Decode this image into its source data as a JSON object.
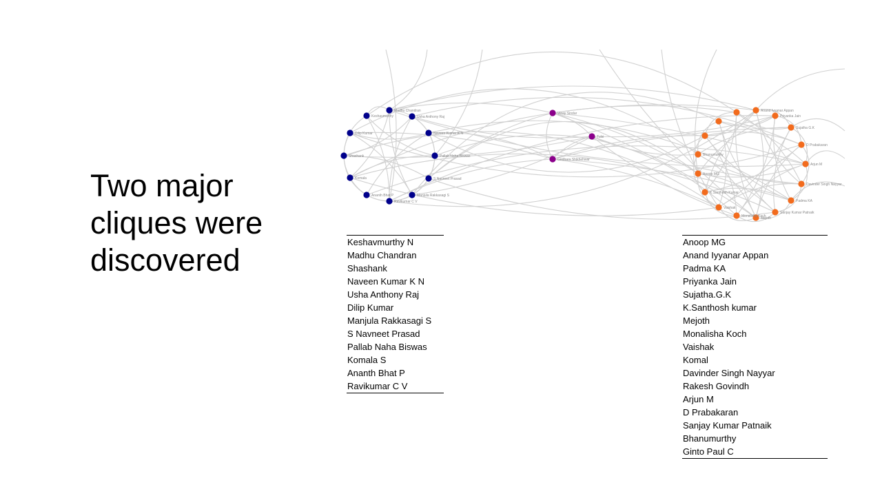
{
  "slide": {
    "title_lines": [
      "Two major",
      "cliques were",
      "discovered"
    ]
  },
  "colors": {
    "clique_a": "#00008b",
    "clique_b": "#f26b1d",
    "bridge": "#8b008b",
    "edge": "#d0d0d0"
  },
  "clique_a_members": [
    "Keshavmurthy N",
    "Madhu Chandran",
    "Shashank",
    "Naveen Kumar K N",
    "Usha Anthony Raj",
    "Dilip Kumar",
    "Manjula Rakkasagi S",
    "S Navneet Prasad",
    "Pallab Naha Biswas",
    "Komala S",
    "Ananth Bhat P",
    "Ravikumar C V"
  ],
  "clique_b_members": [
    "Anoop MG",
    "Anand Iyyanar Appan",
    "Padma KA",
    "Priyanka Jain",
    "Sujatha.G.K",
    "K.Santhosh kumar",
    "Mejoth",
    "Monalisha Koch",
    "Vaishak",
    "Komal",
    "Davinder Singh Nayyar",
    "Rakesh Govindh",
    "Arjun M",
    "D Prabakaran",
    "Sanjay Kumar Patnaik",
    "Bhanumurthy",
    "Ginto Paul C"
  ],
  "graph_labels": {
    "a": [
      "Madhu Chandran",
      "Usha Anthony Raj",
      "Naveen Kumar K N",
      "Pallab Naha Biswas",
      "S Navneet Prasad",
      "Manjula Rakkasagi S",
      "Ravikumar C V",
      "Ananth Bhat P",
      "Komala",
      "Shashank",
      "Dilip Kumar",
      "Keshavmurthy"
    ],
    "bridge": [
      "Vinay Sindar",
      "Tulsi",
      "Girdhara Shikhehwar"
    ],
    "b": [
      "Anand Iyyanar Appan",
      "Priyanka Jain",
      "Sujatha G.K",
      "D Prabakaran",
      "Arjun M",
      "Davinder Singh Nayyar",
      "Padma KA",
      "Sanjay Kumar Patnaik",
      "Mejoth",
      "Monalisha Koch",
      "Vaishak",
      "K.Santhosh Kumar",
      "Anoop MG",
      "Bhanumurthy"
    ]
  }
}
